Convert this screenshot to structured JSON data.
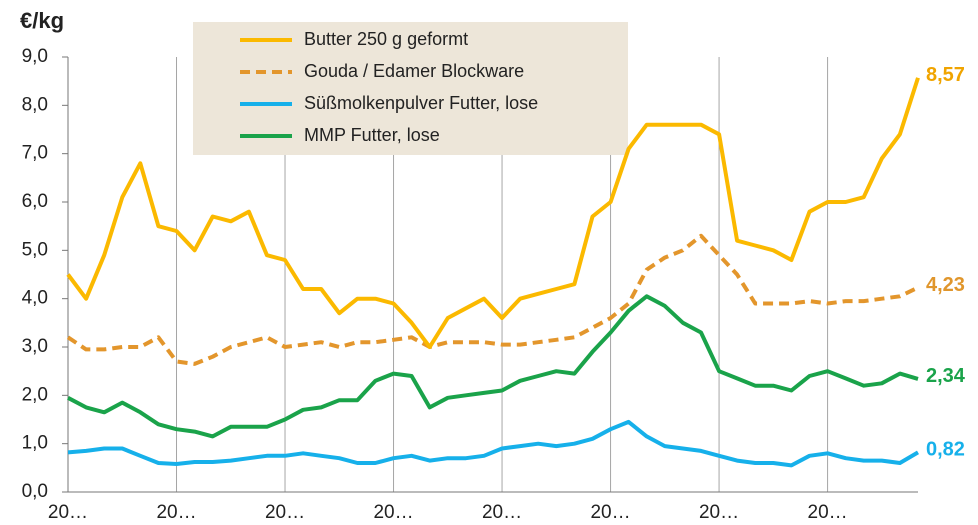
{
  "chart_data": {
    "type": "line",
    "y_label": "€/kg",
    "categories": [
      "20…",
      null,
      null,
      null,
      null,
      null,
      "20…",
      null,
      null,
      null,
      null,
      null,
      "20…",
      null,
      null,
      null,
      null,
      null,
      "20…",
      null,
      null,
      null,
      null,
      null,
      "20…",
      null,
      null,
      null,
      null,
      null,
      "20…",
      null,
      null,
      null,
      null,
      null,
      "20…",
      null,
      null,
      null,
      null,
      null,
      "20…",
      null,
      null,
      null,
      null,
      null
    ],
    "ylim": [
      0,
      9
    ],
    "yticks": [
      {
        "value": 0,
        "label": "0,0"
      },
      {
        "value": 1,
        "label": "1,0"
      },
      {
        "value": 2,
        "label": "2,0"
      },
      {
        "value": 3,
        "label": "3,0"
      },
      {
        "value": 4,
        "label": "4,0"
      },
      {
        "value": 5,
        "label": "5,0"
      },
      {
        "value": 6,
        "label": "6,0"
      },
      {
        "value": 7,
        "label": "7,0"
      },
      {
        "value": 8,
        "label": "8,0"
      },
      {
        "value": 9,
        "label": "9,0"
      }
    ],
    "grid": true,
    "legend": "top-left",
    "series": [
      {
        "name": "Butter 250 g geformt",
        "color": "#fbb900",
        "label_color": "#f0a400",
        "dash": false,
        "values": [
          4.5,
          4.0,
          4.9,
          6.1,
          6.8,
          5.5,
          5.4,
          5.0,
          5.7,
          5.6,
          5.8,
          4.9,
          4.8,
          4.2,
          4.2,
          3.7,
          4.0,
          4.0,
          3.9,
          3.5,
          3.0,
          3.6,
          3.8,
          4.0,
          3.6,
          4.0,
          4.1,
          4.2,
          4.3,
          5.7,
          6.0,
          7.1,
          7.6,
          7.6,
          7.6,
          7.6,
          7.4,
          5.2,
          5.1,
          5.0,
          4.8,
          5.8,
          6.0,
          6.0,
          6.1,
          6.9,
          7.4,
          8.57
        ],
        "value_labels": [
          null,
          null,
          null,
          null,
          null,
          null,
          null,
          null,
          null,
          null,
          null,
          null,
          null,
          null,
          null,
          null,
          null,
          null,
          null,
          null,
          null,
          null,
          null,
          null,
          null,
          null,
          null,
          null,
          null,
          null,
          null,
          null,
          null,
          null,
          null,
          null,
          null,
          null,
          null,
          null,
          null,
          null,
          null,
          null,
          null,
          null,
          null,
          "8,57"
        ]
      },
      {
        "name": "Gouda / Edamer Blockware",
        "color": "#e3962c",
        "label_color": "#e0962c",
        "dash": true,
        "values": [
          3.2,
          2.95,
          2.95,
          3.0,
          3.0,
          3.2,
          2.7,
          2.65,
          2.8,
          3.0,
          3.1,
          3.2,
          3.0,
          3.05,
          3.1,
          3.0,
          3.1,
          3.1,
          3.15,
          3.2,
          3.0,
          3.1,
          3.1,
          3.1,
          3.05,
          3.05,
          3.1,
          3.15,
          3.2,
          3.4,
          3.6,
          3.9,
          4.6,
          4.85,
          5.0,
          5.3,
          4.9,
          4.5,
          3.9,
          3.9,
          3.9,
          3.95,
          3.9,
          3.95,
          3.95,
          4.0,
          4.05,
          4.23
        ],
        "value_labels": [
          null,
          null,
          null,
          null,
          null,
          null,
          null,
          null,
          null,
          null,
          null,
          null,
          null,
          null,
          null,
          null,
          null,
          null,
          null,
          null,
          null,
          null,
          null,
          null,
          null,
          null,
          null,
          null,
          null,
          null,
          null,
          null,
          null,
          null,
          null,
          null,
          null,
          null,
          null,
          null,
          null,
          null,
          null,
          null,
          null,
          null,
          null,
          "4,23"
        ]
      },
      {
        "name": "Süßmolkenpulver Futter, lose",
        "color": "#16b0ea",
        "label_color": "#16b0ea",
        "dash": false,
        "values": [
          0.82,
          0.85,
          0.9,
          0.9,
          0.75,
          0.6,
          0.58,
          0.62,
          0.62,
          0.65,
          0.7,
          0.75,
          0.75,
          0.8,
          0.75,
          0.7,
          0.6,
          0.6,
          0.7,
          0.75,
          0.65,
          0.7,
          0.7,
          0.75,
          0.9,
          0.95,
          1.0,
          0.95,
          1.0,
          1.1,
          1.3,
          1.45,
          1.15,
          0.95,
          0.9,
          0.85,
          0.75,
          0.65,
          0.6,
          0.6,
          0.55,
          0.75,
          0.8,
          0.7,
          0.65,
          0.65,
          0.6,
          0.82
        ],
        "value_labels": [
          null,
          null,
          null,
          null,
          null,
          null,
          null,
          null,
          null,
          null,
          null,
          null,
          null,
          null,
          null,
          null,
          null,
          null,
          null,
          null,
          null,
          null,
          null,
          null,
          null,
          null,
          null,
          null,
          null,
          null,
          null,
          null,
          null,
          null,
          null,
          null,
          null,
          null,
          null,
          null,
          null,
          null,
          null,
          null,
          null,
          null,
          null,
          "0,82"
        ]
      },
      {
        "name": "MMP Futter, lose",
        "color": "#1aa34a",
        "label_color": "#1aa34a",
        "dash": false,
        "values": [
          1.95,
          1.75,
          1.65,
          1.85,
          1.65,
          1.4,
          1.3,
          1.25,
          1.15,
          1.35,
          1.35,
          1.35,
          1.5,
          1.7,
          1.75,
          1.9,
          1.9,
          2.3,
          2.45,
          2.4,
          1.75,
          1.95,
          2.0,
          2.05,
          2.1,
          2.3,
          2.4,
          2.5,
          2.45,
          2.9,
          3.3,
          3.75,
          4.05,
          3.85,
          3.5,
          3.3,
          2.5,
          2.35,
          2.2,
          2.2,
          2.1,
          2.4,
          2.5,
          2.35,
          2.2,
          2.25,
          2.45,
          2.34
        ],
        "value_labels": [
          null,
          null,
          null,
          null,
          null,
          null,
          null,
          null,
          null,
          null,
          null,
          null,
          null,
          null,
          null,
          null,
          null,
          null,
          null,
          null,
          null,
          null,
          null,
          null,
          null,
          null,
          null,
          null,
          null,
          null,
          null,
          null,
          null,
          null,
          null,
          null,
          null,
          null,
          null,
          null,
          null,
          null,
          null,
          null,
          null,
          null,
          null,
          "2,34"
        ]
      }
    ]
  }
}
